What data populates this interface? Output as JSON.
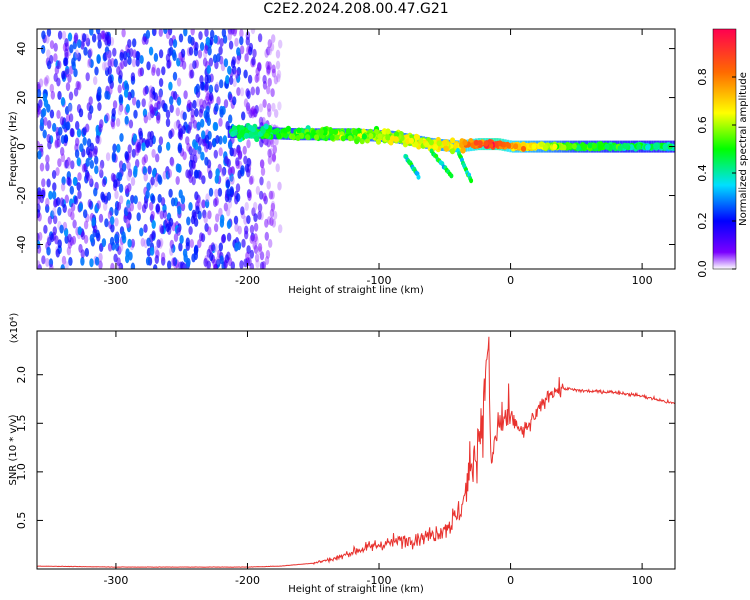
{
  "title": "C2E2.2024.208.00.47.G21",
  "chart_data": [
    {
      "type": "heatmap",
      "xlabel": "Height of straight line (km)",
      "ylabel": "Frequency (Hz)",
      "xlim": [
        -360,
        125
      ],
      "ylim": [
        -50,
        48
      ],
      "x_ticks": [
        -300,
        -200,
        -100,
        0,
        100
      ],
      "x_tick_labels": [
        "-300",
        "-200",
        "-100",
        "0",
        "100"
      ],
      "y_ticks": [
        -40,
        -20,
        0,
        20,
        40
      ],
      "y_tick_labels": [
        "-40",
        "-20",
        "0",
        "20",
        "40"
      ],
      "colorbar": {
        "label": "Normalized spectral amplitude",
        "range": [
          0,
          1
        ],
        "ticks": [
          0.0,
          0.2,
          0.4,
          0.6,
          0.8
        ],
        "tick_labels": [
          "0.0",
          "0.2",
          "0.4",
          "0.6",
          "0.8"
        ],
        "colormap": [
          "#ffffff",
          "#7a00ff",
          "#0000ff",
          "#00e0ff",
          "#00ff00",
          "#ffff00",
          "#ff6a00",
          "#ff0050"
        ]
      },
      "features": [
        {
          "kind": "scattered noise",
          "height_range": [
            -360,
            -175
          ],
          "frequency_range": [
            -50,
            48
          ],
          "amplitude": [
            0.0,
            0.3
          ]
        },
        {
          "kind": "signal band",
          "heights": [
            -210,
            -160,
            -120,
            -90,
            -60,
            -40,
            -25,
            -10,
            0,
            50,
            125
          ],
          "center_frequency": [
            6,
            5,
            5,
            4,
            1,
            0,
            1,
            1,
            0,
            0,
            0
          ],
          "amplitude": [
            0.45,
            0.5,
            0.55,
            0.6,
            0.65,
            0.7,
            0.85,
            0.9,
            0.75,
            0.5,
            0.4
          ]
        }
      ],
      "grid": false
    },
    {
      "type": "line",
      "xlabel": "Height of straight line (km)",
      "ylabel": "SNR (10 * v/v)",
      "y_multiplier": "(x10⁴)",
      "xlim": [
        -360,
        125
      ],
      "ylim": [
        0,
        2.45
      ],
      "x_ticks": [
        -300,
        -200,
        -100,
        0,
        100
      ],
      "x_tick_labels": [
        "-300",
        "-200",
        "-100",
        "0",
        "100"
      ],
      "y_ticks": [
        0.5,
        1.0,
        1.5,
        2.0
      ],
      "y_tick_labels": [
        "0.5",
        "1.0",
        "1.5",
        "2.0"
      ],
      "color": "#e8322e",
      "series": [
        {
          "x": [
            -360,
            -300,
            -250,
            -200,
            -175,
            -150,
            -130,
            -120,
            -100,
            -80,
            -60,
            -50,
            -40,
            -35,
            -30,
            -25,
            -20,
            -17,
            -15,
            -10,
            -5,
            0,
            10,
            20,
            30,
            40,
            50,
            60,
            80,
            100,
            125
          ],
          "y": [
            0.03,
            0.02,
            0.02,
            0.02,
            0.03,
            0.06,
            0.12,
            0.18,
            0.25,
            0.3,
            0.35,
            0.42,
            0.55,
            0.75,
            1.05,
            1.3,
            1.75,
            2.45,
            1.05,
            1.45,
            1.55,
            1.55,
            1.4,
            1.6,
            1.82,
            1.86,
            1.84,
            1.83,
            1.82,
            1.78,
            1.7
          ]
        }
      ],
      "grid": false
    }
  ]
}
